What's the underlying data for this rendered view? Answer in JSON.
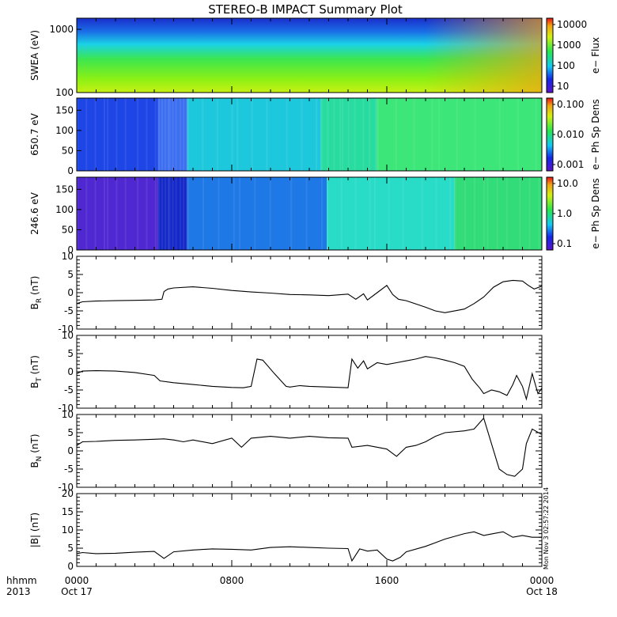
{
  "title": "STEREO-B IMPACT Summary Plot",
  "timestamp_text": "Mon Nov 3 02:57:22 2014",
  "time_axis": {
    "row1_labels": [
      "hhmm",
      "0000",
      "0800",
      "1600",
      "0000"
    ],
    "row2_labels": [
      "2013",
      "Oct 17",
      "Oct 18"
    ],
    "range_hours": [
      0,
      24
    ]
  },
  "chart_data": [
    {
      "type": "heatmap",
      "ylabel": "SWEA (eV)",
      "ylim": [
        100,
        1500
      ],
      "yscale": "log",
      "yticks": [
        "1000",
        "100"
      ],
      "colorbar": {
        "label": "e− Flux",
        "ticks": [
          "10000",
          "1000",
          "100",
          "10"
        ],
        "scale": "log"
      },
      "description_colors": [
        "#1a2ecc",
        "#1aa0e6",
        "#28e650",
        "#c8f014",
        "#f0a014"
      ]
    },
    {
      "type": "heatmap",
      "ylabel": "650.7 eV",
      "ylim": [
        0,
        180
      ],
      "yticks": [
        "150",
        "100",
        "50",
        "0"
      ],
      "colorbar": {
        "label": "e− Ph Sp Dens",
        "ticks": [
          "0.100",
          "0.010",
          "0.001"
        ],
        "scale": "log"
      },
      "segments_hours": [
        0,
        4.2,
        5.7,
        12.6,
        15.5,
        24
      ],
      "segment_colors": [
        "#1e46e6",
        "#3c6ef0",
        "#1ec8dc",
        "#28dca0",
        "#3ce678"
      ]
    },
    {
      "type": "heatmap",
      "ylabel": "246.6 eV",
      "ylim": [
        0,
        180
      ],
      "yticks": [
        "150",
        "100",
        "50",
        "0"
      ],
      "colorbar": {
        "label": "e− Ph Sp Dens",
        "ticks": [
          "10.0",
          "1.0",
          "0.1"
        ],
        "scale": "log"
      },
      "segments_hours": [
        0,
        4.2,
        5.7,
        12.9,
        19.5,
        24
      ],
      "segment_colors": [
        "#5028d2",
        "#1428c8",
        "#1e78e6",
        "#28dcc8",
        "#32dc78"
      ]
    },
    {
      "type": "line",
      "ylabel": "B_R (nT)",
      "ylim": [
        -10,
        10
      ],
      "yticks": [
        "10",
        "5",
        "0",
        "-5",
        "-10"
      ],
      "x": [
        0,
        0.3,
        1,
        2,
        3,
        4,
        4.4,
        4.5,
        4.7,
        5,
        6,
        7,
        8,
        9,
        10,
        11,
        12,
        13,
        14,
        14.4,
        14.8,
        15,
        15.5,
        16,
        16.3,
        16.6,
        17,
        18,
        18.5,
        19,
        20,
        20.5,
        21,
        21.5,
        22,
        22.5,
        23,
        23.3,
        23.6,
        24
      ],
      "values": [
        -3,
        -2.5,
        -2.3,
        -2.2,
        -2.1,
        -2.0,
        -1.8,
        0.3,
        1.0,
        1.3,
        1.6,
        1.2,
        0.6,
        0.2,
        -0.1,
        -0.5,
        -0.6,
        -0.8,
        -0.4,
        -1.8,
        -0.3,
        -2.0,
        0.0,
        2.0,
        -0.5,
        -1.8,
        -2.2,
        -4.0,
        -5.0,
        -5.5,
        -4.5,
        -3.0,
        -1.2,
        1.5,
        3.0,
        3.4,
        3.2,
        2.0,
        1.0,
        1.8
      ]
    },
    {
      "type": "line",
      "ylabel": "B_T (nT)",
      "ylim": [
        -10,
        10
      ],
      "yticks": [
        "10",
        "5",
        "0",
        "-5",
        "-10"
      ],
      "x": [
        0,
        0.3,
        1,
        2,
        3,
        4,
        4.3,
        5,
        6,
        7,
        8,
        8.6,
        9,
        9.3,
        9.6,
        10.2,
        10.8,
        11,
        11.5,
        12,
        13,
        14,
        14.2,
        14.5,
        14.8,
        15,
        15.5,
        16,
        16.5,
        17,
        17.5,
        18,
        18.5,
        19,
        19.5,
        20,
        20.4,
        20.8,
        21,
        21.4,
        21.8,
        22.2,
        22.5,
        22.7,
        23,
        23.2,
        23.5,
        23.8,
        24
      ],
      "values": [
        -0.5,
        0.2,
        0.3,
        0.2,
        -0.2,
        -1.0,
        -2.5,
        -3.0,
        -3.5,
        -4.0,
        -4.3,
        -4.4,
        -4.0,
        3.5,
        3.2,
        -0.5,
        -4.0,
        -4.2,
        -3.8,
        -4.0,
        -4.2,
        -4.4,
        3.5,
        1.0,
        3.0,
        0.8,
        2.5,
        2.0,
        2.5,
        3.0,
        3.5,
        4.2,
        3.8,
        3.2,
        2.5,
        1.5,
        -2.0,
        -4.5,
        -6.0,
        -5.0,
        -5.5,
        -6.5,
        -3.5,
        -1.0,
        -4.0,
        -7.5,
        -0.5,
        -6.0,
        -4.5
      ]
    },
    {
      "type": "line",
      "ylabel": "B_N (nT)",
      "ylim": [
        -10,
        10
      ],
      "yticks": [
        "10",
        "5",
        "0",
        "-5",
        "-10"
      ],
      "x": [
        0,
        0.3,
        1,
        2,
        3,
        4,
        4.5,
        5,
        5.5,
        6,
        7,
        8,
        8.5,
        9,
        10,
        11,
        12,
        13,
        14,
        14.2,
        15,
        16,
        16.5,
        17,
        17.5,
        18,
        18.5,
        19,
        20,
        20.5,
        21,
        21.4,
        21.8,
        22.2,
        22.6,
        23,
        23.2,
        23.5,
        24
      ],
      "values": [
        1.5,
        2.5,
        2.6,
        2.9,
        3.0,
        3.2,
        3.3,
        3.0,
        2.5,
        3.0,
        2.0,
        3.5,
        1.0,
        3.5,
        4.0,
        3.5,
        4.0,
        3.6,
        3.5,
        1.0,
        1.5,
        0.5,
        -1.5,
        1.0,
        1.5,
        2.5,
        4.0,
        5.0,
        5.5,
        6.0,
        9.0,
        2.0,
        -5.0,
        -6.5,
        -7.0,
        -5.0,
        2.0,
        6.0,
        4.5
      ]
    },
    {
      "type": "line",
      "ylabel": "|B| (nT)",
      "ylim": [
        0,
        20
      ],
      "yticks": [
        "20",
        "15",
        "10",
        "5",
        "0"
      ],
      "x": [
        0,
        0.3,
        1,
        2,
        3,
        4,
        4.5,
        5,
        6,
        7,
        8,
        9,
        10,
        11,
        12,
        13,
        14,
        14.2,
        14.6,
        15,
        15.5,
        16,
        16.3,
        16.7,
        17,
        18,
        18.5,
        19,
        20,
        20.5,
        21,
        21.5,
        22,
        22.5,
        23,
        23.5,
        24
      ],
      "values": [
        3.5,
        3.8,
        3.5,
        3.6,
        3.9,
        4.1,
        2.2,
        4.0,
        4.5,
        4.8,
        4.7,
        4.5,
        5.2,
        5.4,
        5.2,
        5.0,
        4.9,
        1.5,
        4.8,
        4.2,
        4.5,
        2.0,
        1.5,
        2.5,
        4.0,
        5.5,
        6.5,
        7.5,
        9.0,
        9.5,
        8.5,
        9.0,
        9.5,
        8.0,
        8.5,
        8.0,
        8.0
      ]
    }
  ]
}
